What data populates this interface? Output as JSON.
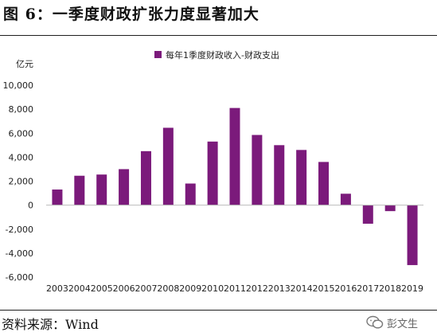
{
  "figure_title": "图 6：一季度财政扩张力度显著加大",
  "source": "资料来源：Wind",
  "watermark": {
    "text": "彭文生",
    "icon": "wechat-icon"
  },
  "chart_data": {
    "type": "bar",
    "title": "",
    "ylabel": "亿元",
    "xlabel": "",
    "ylim": [
      -6000,
      10000
    ],
    "yticks": [
      -6000,
      -4000,
      -2000,
      0,
      2000,
      4000,
      6000,
      8000,
      10000
    ],
    "ytick_labels": [
      "-6,000",
      "-4,000",
      "-2,000",
      "0",
      "2,000",
      "4,000",
      "6,000",
      "8,000",
      "10,000"
    ],
    "grid": false,
    "legend": "top",
    "categories": [
      "2003",
      "2004",
      "2005",
      "2006",
      "2007",
      "2008",
      "2009",
      "2010",
      "2011",
      "2012",
      "2013",
      "2014",
      "2015",
      "2016",
      "2017",
      "2018",
      "2019"
    ],
    "series": [
      {
        "name": "每年1季度财政收入-财政支出",
        "color": "#7b1a7b",
        "values": [
          1300,
          2450,
          2550,
          3000,
          4500,
          6450,
          1800,
          5300,
          8100,
          5850,
          5000,
          4600,
          3600,
          950,
          -1550,
          -500,
          -5000
        ]
      }
    ]
  }
}
